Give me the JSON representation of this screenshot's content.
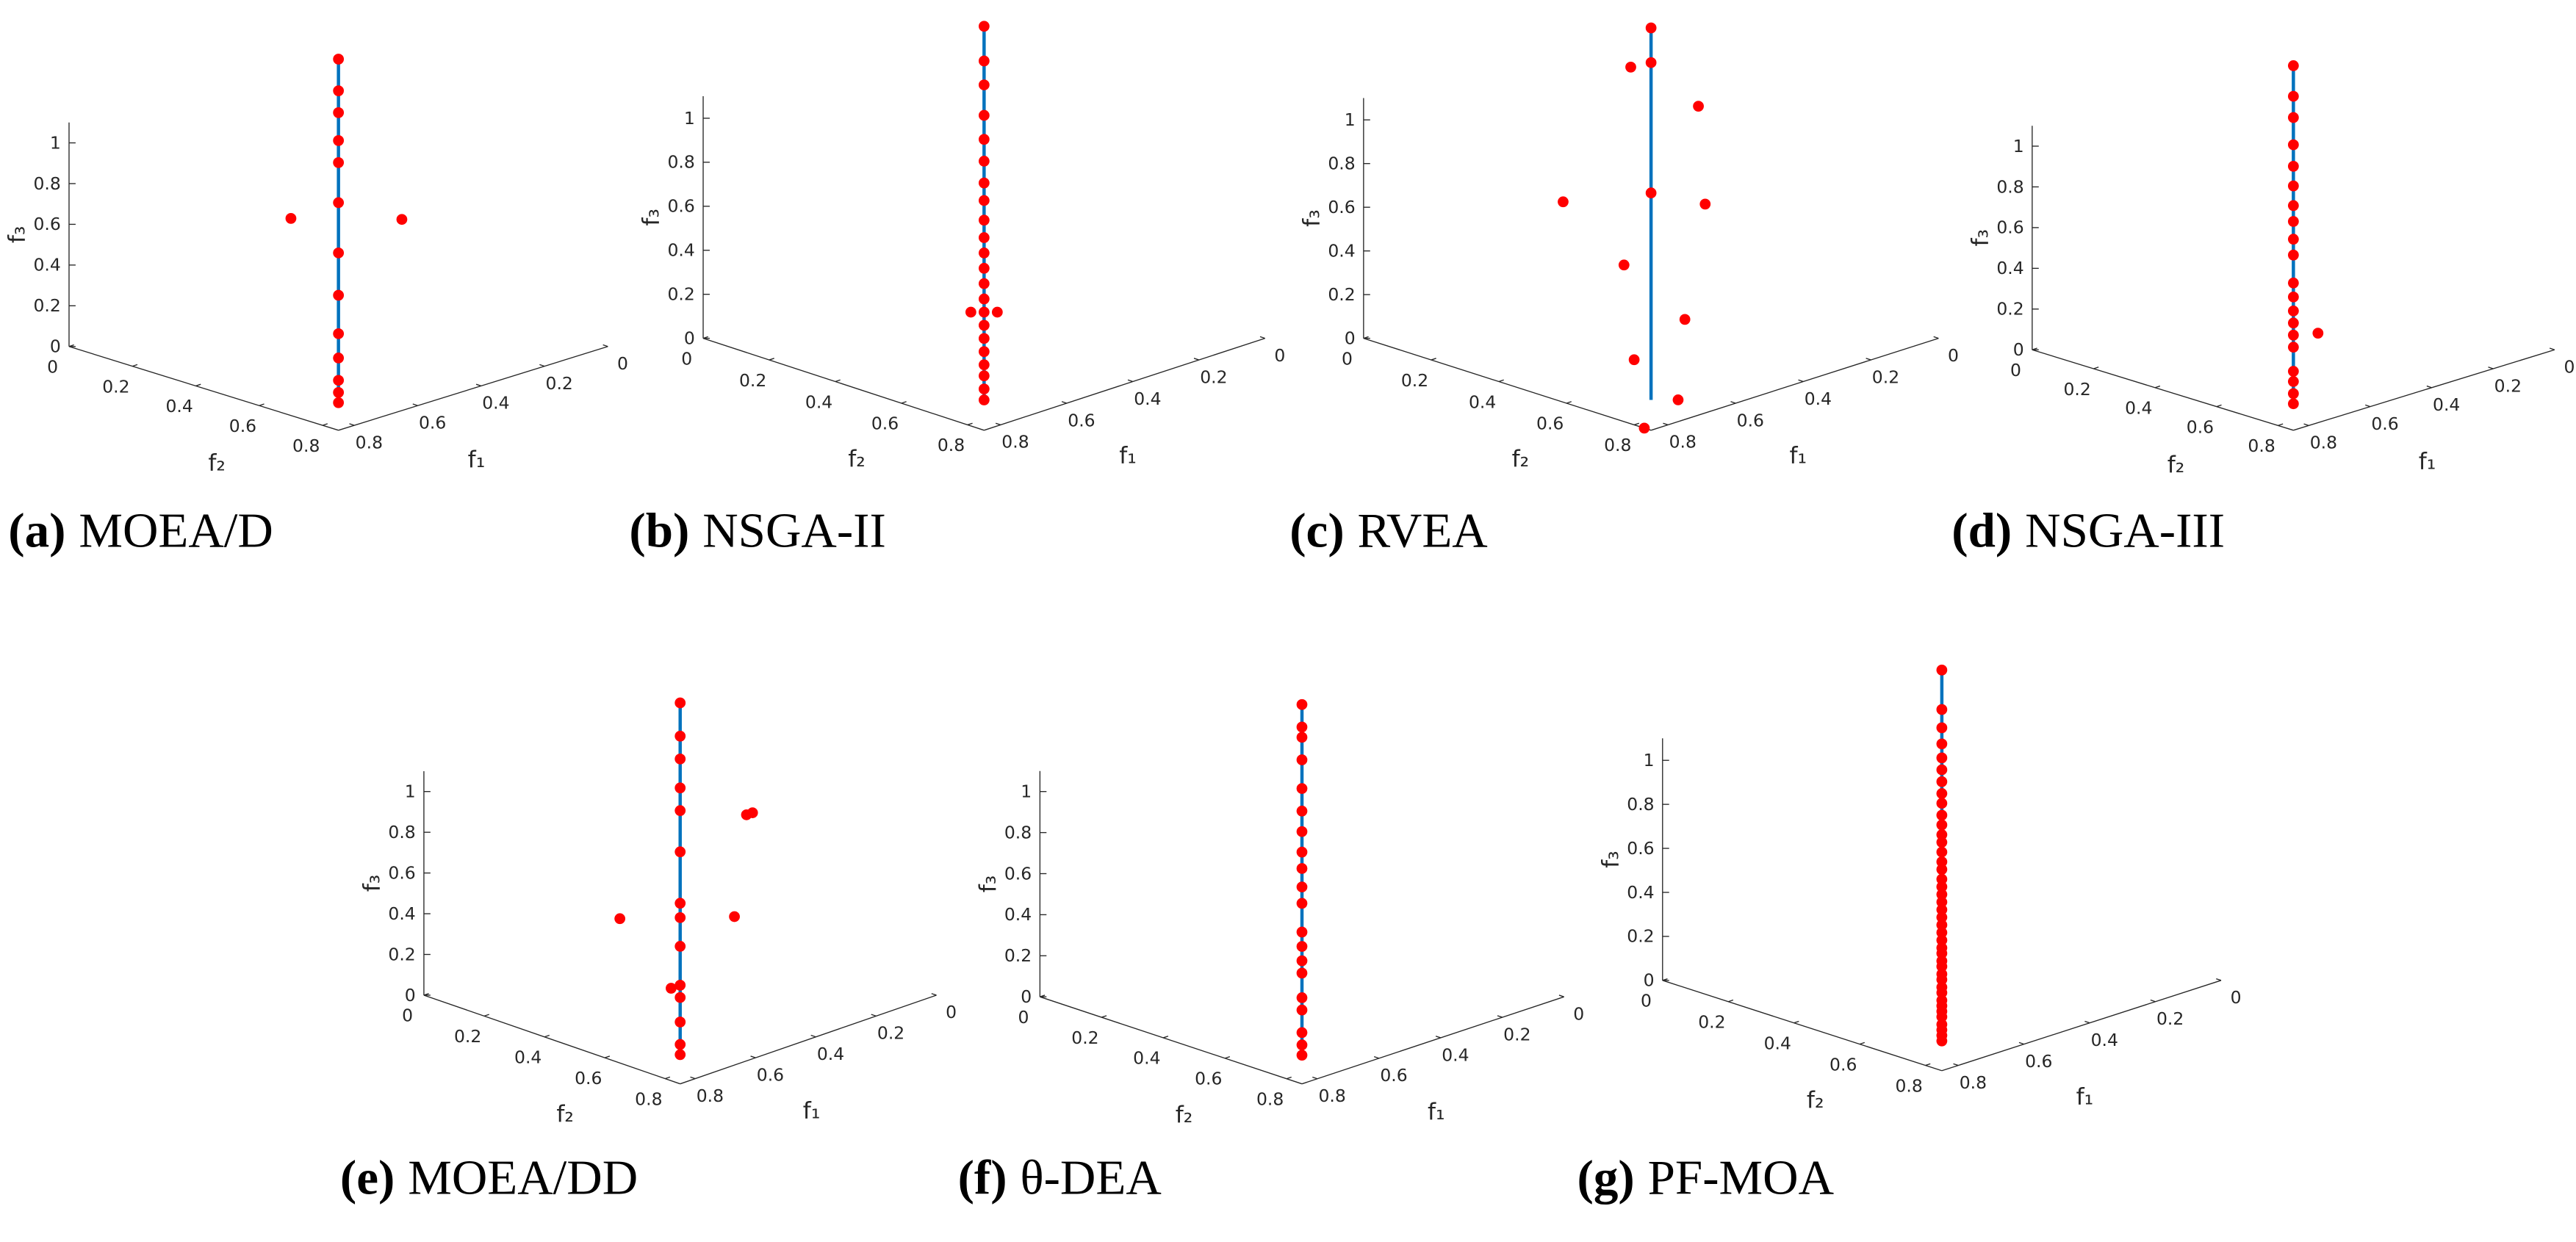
{
  "chart_data": [
    {
      "type": "scatter3d",
      "label": "(a)",
      "title": "MOEA/D",
      "xlabel": "f₁",
      "ylabel": "f₂",
      "zlabel": "f₃",
      "xlim": [
        0,
        0.85
      ],
      "ylim": [
        0,
        0.85
      ],
      "zlim": [
        0,
        1.1
      ],
      "xticks": [
        0,
        0.2,
        0.4,
        0.6,
        0.8
      ],
      "yticks": [
        0,
        0.2,
        0.4,
        0.6,
        0.8
      ],
      "zticks": [
        0,
        0.2,
        0.4,
        0.6,
        0.8,
        1
      ],
      "color": "#ff0000",
      "front": {
        "color": "#0072bd",
        "f1": [
          0.71,
          0
        ],
        "f2": [
          0.71,
          0
        ],
        "f3": [
          0,
          1
        ]
      },
      "points": {
        "f1": [
          0,
          0.14,
          0.22,
          0.31,
          0.37,
          0.47,
          0.57,
          0.63,
          0.67,
          0.69,
          0.7,
          0.71,
          0.71,
          0.47,
          0.3
        ],
        "f2": [
          0,
          0.14,
          0.22,
          0.31,
          0.37,
          0.47,
          0.57,
          0.63,
          0.67,
          0.69,
          0.7,
          0.71,
          0.71,
          0.32,
          0.5
        ],
        "f3": [
          1,
          0.98,
          0.95,
          0.9,
          0.85,
          0.75,
          0.6,
          0.45,
          0.3,
          0.2,
          0.1,
          0.05,
          0,
          0.6,
          0.6
        ]
      }
    },
    {
      "type": "scatter3d",
      "label": "(b)",
      "title": "NSGA-II",
      "xlabel": "f₁",
      "ylabel": "f₂",
      "zlabel": "f₃",
      "xlim": [
        0,
        0.85
      ],
      "ylim": [
        0,
        0.85
      ],
      "zlim": [
        0,
        1.1
      ],
      "xticks": [
        0,
        0.2,
        0.4,
        0.6,
        0.8
      ],
      "yticks": [
        0,
        0.2,
        0.4,
        0.6,
        0.8
      ],
      "zticks": [
        0,
        0.2,
        0.4,
        0.6,
        0.8,
        1
      ],
      "color": "#ff0000",
      "front": {
        "color": "#0072bd",
        "f1": [
          0.71,
          0
        ],
        "f2": [
          0.71,
          0
        ],
        "f3": [
          0,
          1
        ]
      },
      "points": {
        "f1": [
          0,
          0.14,
          0.22,
          0.31,
          0.37,
          0.42,
          0.47,
          0.5,
          0.54,
          0.57,
          0.59,
          0.61,
          0.63,
          0.65,
          0.66,
          0.67,
          0.68,
          0.69,
          0.7,
          0.7,
          0.71,
          0.71,
          0.68,
          0.64
        ],
        "f2": [
          0,
          0.14,
          0.22,
          0.31,
          0.37,
          0.42,
          0.47,
          0.5,
          0.54,
          0.57,
          0.59,
          0.61,
          0.63,
          0.65,
          0.66,
          0.67,
          0.68,
          0.69,
          0.7,
          0.7,
          0.71,
          0.71,
          0.64,
          0.68
        ],
        "f3": [
          1,
          0.98,
          0.95,
          0.9,
          0.85,
          0.8,
          0.75,
          0.7,
          0.65,
          0.6,
          0.55,
          0.5,
          0.45,
          0.4,
          0.35,
          0.3,
          0.25,
          0.2,
          0.15,
          0.1,
          0.05,
          0,
          0.35,
          0.35
        ]
      }
    },
    {
      "type": "scatter3d",
      "label": "(c)",
      "title": "RVEA",
      "xlabel": "f₁",
      "ylabel": "f₂",
      "zlabel": "f₃",
      "xlim": [
        0,
        0.85
      ],
      "ylim": [
        0,
        0.85
      ],
      "zlim": [
        0,
        1.1
      ],
      "xticks": [
        0,
        0.2,
        0.4,
        0.6,
        0.8
      ],
      "yticks": [
        0,
        0.2,
        0.4,
        0.6,
        0.8
      ],
      "zticks": [
        0,
        0.2,
        0.4,
        0.6,
        0.8,
        1
      ],
      "color": "#ff0000",
      "front": {
        "color": "#0072bd",
        "f1": [
          0.71,
          0
        ],
        "f2": [
          0.71,
          0
        ],
        "f3": [
          0,
          1
        ]
      },
      "points": {
        "f1": [
          0,
          0.14,
          0.09,
          0.09,
          0.48,
          0.53,
          0.28,
          0.53,
          0.54,
          0.67,
          0.72,
          0.85
        ],
        "f2": [
          0,
          0.14,
          0.03,
          0.23,
          0.48,
          0.27,
          0.44,
          0.45,
          0.64,
          0.62,
          0.8,
          0.83
        ],
        "f3": [
          1,
          0.98,
          0.88,
          0.8,
          0.72,
          0.6,
          0.55,
          0.4,
          0.25,
          0.12,
          0.05,
          0
        ]
      }
    },
    {
      "type": "scatter3d",
      "label": "(d)",
      "title": "NSGA-III",
      "xlabel": "f₁",
      "ylabel": "f₂",
      "zlabel": "f₃",
      "xlim": [
        0,
        0.85
      ],
      "ylim": [
        0,
        0.85
      ],
      "zlim": [
        0,
        1.1
      ],
      "xticks": [
        0,
        0.2,
        0.4,
        0.6,
        0.8
      ],
      "yticks": [
        0,
        0.2,
        0.4,
        0.6,
        0.8
      ],
      "zticks": [
        0,
        0.2,
        0.4,
        0.6,
        0.8,
        1
      ],
      "color": "#ff0000",
      "front": {
        "color": "#0072bd",
        "f1": [
          0.71,
          0
        ],
        "f2": [
          0.71,
          0
        ],
        "f3": [
          0,
          1
        ]
      },
      "points": {
        "f1": [
          0,
          0.14,
          0.22,
          0.31,
          0.37,
          0.42,
          0.47,
          0.5,
          0.54,
          0.57,
          0.61,
          0.63,
          0.65,
          0.66,
          0.67,
          0.68,
          0.7,
          0.7,
          0.71,
          0.71,
          0.62
        ],
        "f2": [
          0,
          0.14,
          0.22,
          0.31,
          0.37,
          0.42,
          0.47,
          0.5,
          0.54,
          0.57,
          0.61,
          0.63,
          0.65,
          0.66,
          0.67,
          0.68,
          0.7,
          0.7,
          0.71,
          0.71,
          0.7
        ],
        "f3": [
          1,
          0.98,
          0.95,
          0.9,
          0.85,
          0.8,
          0.75,
          0.7,
          0.65,
          0.6,
          0.5,
          0.45,
          0.4,
          0.35,
          0.3,
          0.25,
          0.15,
          0.1,
          0.05,
          0,
          0.3
        ]
      }
    },
    {
      "type": "scatter3d",
      "label": "(e)",
      "title": "MOEA/DD",
      "xlabel": "f₁",
      "ylabel": "f₂",
      "zlabel": "f₃",
      "xlim": [
        0,
        0.85
      ],
      "ylim": [
        0,
        0.85
      ],
      "zlim": [
        0,
        1.1
      ],
      "xticks": [
        0,
        0.2,
        0.4,
        0.6,
        0.8
      ],
      "yticks": [
        0,
        0.2,
        0.4,
        0.6,
        0.8
      ],
      "zticks": [
        0,
        0.2,
        0.4,
        0.6,
        0.8,
        1
      ],
      "color": "#ff0000",
      "front": {
        "color": "#0072bd",
        "f1": [
          0.71,
          0
        ],
        "f2": [
          0.71,
          0
        ],
        "f3": [
          0,
          1
        ]
      },
      "points": {
        "f1": [
          0,
          0.14,
          0.22,
          0.31,
          0.37,
          0.47,
          0.57,
          0.59,
          0.63,
          0.67,
          0.68,
          0.7,
          0.71,
          0.71,
          0.5,
          0.3,
          0.28,
          0.27,
          0.68
        ],
        "f2": [
          0,
          0.14,
          0.22,
          0.31,
          0.37,
          0.47,
          0.57,
          0.59,
          0.63,
          0.67,
          0.68,
          0.7,
          0.71,
          0.71,
          0.3,
          0.48,
          0.5,
          0.51,
          0.65
        ],
        "f3": [
          1,
          0.98,
          0.95,
          0.9,
          0.85,
          0.75,
          0.6,
          0.55,
          0.45,
          0.3,
          0.25,
          0.15,
          0.05,
          0,
          0.35,
          0.35,
          0.85,
          0.86,
          0.28
        ]
      }
    },
    {
      "type": "scatter3d",
      "label": "(f)",
      "title": "θ-DEA",
      "xlabel": "f₁",
      "ylabel": "f₂",
      "zlabel": "f₃",
      "xlim": [
        0,
        0.85
      ],
      "ylim": [
        0,
        0.85
      ],
      "zlim": [
        0,
        1.1
      ],
      "xticks": [
        0,
        0.2,
        0.4,
        0.6,
        0.8
      ],
      "yticks": [
        0,
        0.2,
        0.4,
        0.6,
        0.8
      ],
      "zticks": [
        0,
        0.2,
        0.4,
        0.6,
        0.8,
        1
      ],
      "color": "#ff0000",
      "front": {
        "color": "#0072bd",
        "f1": [
          0.71,
          0
        ],
        "f2": [
          0.71,
          0
        ],
        "f3": [
          0,
          1
        ]
      },
      "points": {
        "f1": [
          0,
          0.1,
          0.14,
          0.22,
          0.31,
          0.37,
          0.42,
          0.47,
          0.5,
          0.54,
          0.57,
          0.61,
          0.63,
          0.65,
          0.66,
          0.68,
          0.69,
          0.7,
          0.71,
          0.71
        ],
        "f2": [
          0,
          0.1,
          0.14,
          0.22,
          0.31,
          0.37,
          0.42,
          0.47,
          0.5,
          0.54,
          0.57,
          0.61,
          0.63,
          0.65,
          0.66,
          0.68,
          0.69,
          0.7,
          0.71,
          0.71
        ],
        "f3": [
          1,
          0.99,
          0.98,
          0.95,
          0.9,
          0.85,
          0.8,
          0.75,
          0.7,
          0.65,
          0.6,
          0.5,
          0.45,
          0.4,
          0.35,
          0.25,
          0.2,
          0.1,
          0.05,
          0
        ]
      }
    },
    {
      "type": "scatter3d",
      "label": "(g)",
      "title": "PF-MOA",
      "xlabel": "f₁",
      "ylabel": "f₂",
      "zlabel": "f₃",
      "xlim": [
        0,
        0.85
      ],
      "ylim": [
        0,
        0.85
      ],
      "zlim": [
        0,
        1.1
      ],
      "xticks": [
        0,
        0.2,
        0.4,
        0.6,
        0.8
      ],
      "yticks": [
        0,
        0.2,
        0.4,
        0.6,
        0.8
      ],
      "zticks": [
        0,
        0.2,
        0.4,
        0.6,
        0.8,
        1
      ],
      "color": "#ff0000",
      "front": {
        "color": "#0072bd",
        "f1": [
          0.71,
          0
        ],
        "f2": [
          0.71,
          0
        ],
        "f3": [
          0,
          1
        ]
      },
      "points": {
        "f1": [
          0,
          0.16,
          0.22,
          0.27,
          0.31,
          0.34,
          0.37,
          0.4,
          0.42,
          0.45,
          0.47,
          0.49,
          0.5,
          0.52,
          0.54,
          0.55,
          0.57,
          0.58,
          0.59,
          0.6,
          0.61,
          0.62,
          0.63,
          0.64,
          0.65,
          0.66,
          0.66,
          0.67,
          0.67,
          0.68,
          0.68,
          0.69,
          0.69,
          0.7,
          0.7,
          0.7,
          0.7,
          0.71,
          0.71,
          0.71,
          0.71
        ],
        "f2": [
          0,
          0.16,
          0.22,
          0.27,
          0.31,
          0.34,
          0.37,
          0.4,
          0.42,
          0.45,
          0.47,
          0.49,
          0.5,
          0.52,
          0.54,
          0.55,
          0.57,
          0.58,
          0.59,
          0.6,
          0.61,
          0.62,
          0.63,
          0.64,
          0.65,
          0.66,
          0.66,
          0.67,
          0.67,
          0.68,
          0.68,
          0.69,
          0.69,
          0.7,
          0.7,
          0.7,
          0.7,
          0.71,
          0.71,
          0.71,
          0.71
        ],
        "f3": [
          1,
          0.975,
          0.95,
          0.925,
          0.9,
          0.875,
          0.85,
          0.825,
          0.8,
          0.775,
          0.75,
          0.725,
          0.7,
          0.675,
          0.65,
          0.625,
          0.6,
          0.575,
          0.55,
          0.525,
          0.5,
          0.475,
          0.45,
          0.425,
          0.4,
          0.375,
          0.35,
          0.325,
          0.3,
          0.275,
          0.25,
          0.225,
          0.2,
          0.175,
          0.15,
          0.125,
          0.1,
          0.075,
          0.05,
          0.025,
          0
        ]
      }
    }
  ]
}
